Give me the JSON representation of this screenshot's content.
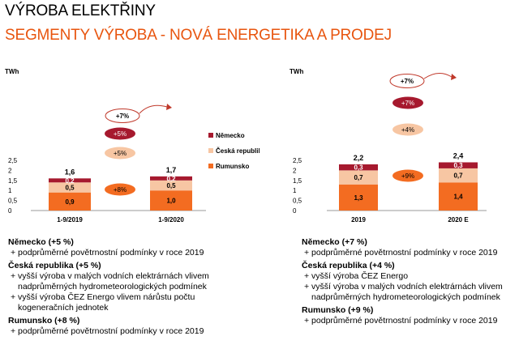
{
  "header": {
    "title": "VÝROBA ELEKTŘINY",
    "subtitle": "SEGMENTY VÝROBA - NOVÁ ENERGETIKA A PRODEJ"
  },
  "colors": {
    "germany": "#a6192e",
    "czech": "#f7c6a3",
    "romania": "#f36c21",
    "accent": "#e8550f"
  },
  "chart_data": [
    {
      "type": "bar",
      "stacked": true,
      "unit": "TWh",
      "ylim": [
        0,
        2.5
      ],
      "yticks": [
        "0",
        "0,5",
        "1",
        "1,5",
        "2",
        "2,5"
      ],
      "categories": [
        "1-9/2019",
        "1-9/2020"
      ],
      "totals": [
        "1,6",
        "1,7"
      ],
      "series": [
        {
          "name": "Rumunsko",
          "values": [
            0.9,
            1.0
          ],
          "labels": [
            "0,9",
            "1,0"
          ]
        },
        {
          "name": "Česká republika",
          "values": [
            0.5,
            0.5
          ],
          "labels": [
            "0,5",
            "0,5"
          ]
        },
        {
          "name": "Německo",
          "values": [
            0.2,
            0.2
          ],
          "labels": [
            "0,2",
            "0,2"
          ]
        }
      ],
      "changes": {
        "Německo": "+5%",
        "Česká republika": "+5%",
        "Rumunsko": "+8%",
        "total": "+7%"
      },
      "legend": [
        "Německo",
        "Česká republika",
        "Rumunsko"
      ]
    },
    {
      "type": "bar",
      "stacked": true,
      "unit": "TWh",
      "ylim": [
        0,
        2.5
      ],
      "yticks": [
        "0",
        "0,5",
        "1",
        "1,5",
        "2",
        "2,5"
      ],
      "categories": [
        "2019",
        "2020 E"
      ],
      "totals": [
        "2,2",
        "2,4"
      ],
      "series": [
        {
          "name": "Rumunsko",
          "values": [
            1.3,
            1.4
          ],
          "labels": [
            "1,3",
            "1,4"
          ]
        },
        {
          "name": "Česká republika",
          "values": [
            0.7,
            0.7
          ],
          "labels": [
            "0,7",
            "0,7"
          ]
        },
        {
          "name": "Německo",
          "values": [
            0.3,
            0.3
          ],
          "labels": [
            "0,3",
            "0,3"
          ]
        }
      ],
      "changes": {
        "Německo": "+7%",
        "Česká republika": "+4%",
        "Rumunsko": "+9%",
        "total": "+7%"
      }
    }
  ],
  "notes_left": [
    {
      "heading": "Německo (+5 %)",
      "bullets": [
        "+ podprůměrné povětrnostní podmínky v roce 2019"
      ]
    },
    {
      "heading": "Česká republika (+5 %)",
      "bullets": [
        "+ vyšší výroba v malých vodních elektrárnách vlivem nadprůměrných hydrometeorologických podmínek",
        "+ vyšší výroba ČEZ Energo vlivem nárůstu počtu kogeneračních jednotek"
      ]
    },
    {
      "heading": "Rumunsko (+8 %)",
      "bullets": [
        "+ podprůměrné povětrnostní podmínky v roce 2019"
      ]
    }
  ],
  "notes_right": [
    {
      "heading": "Německo (+7 %)",
      "bullets": [
        "+ podprůměrné povětrnostní podmínky v roce 2019"
      ]
    },
    {
      "heading": "Česká republika (+4 %)",
      "bullets": [
        "+ vyšší výroba ČEZ Energo",
        "+ vyšší výroba v malých vodních elektrárnách vlivem nadprůměrných hydrometeorologických podmínek"
      ]
    },
    {
      "heading": "Rumunsko (+9 %)",
      "bullets": [
        "+ podprůměrné povětrnostní podmínky v roce 2019"
      ]
    }
  ]
}
